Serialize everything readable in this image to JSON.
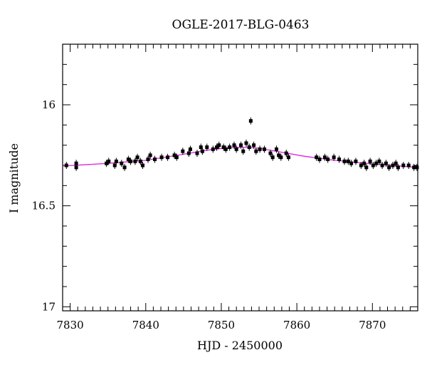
{
  "chart_data": {
    "type": "scatter",
    "title": "OGLE-2017-BLG-0463",
    "xlabel": "HJD - 2450000",
    "ylabel": "I magnitude",
    "xlim": [
      7829,
      7876
    ],
    "ylim": [
      17.02,
      15.7
    ],
    "y_inverted": true,
    "grid": false,
    "x_ticks": [
      7830,
      7840,
      7850,
      7860,
      7870
    ],
    "x_tick_labels": [
      "7830",
      "7840",
      "7850",
      "7860",
      "7870"
    ],
    "y_ticks": [
      16,
      16.5,
      17
    ],
    "y_tick_labels": [
      "16",
      "16.5",
      "17"
    ],
    "series": [
      {
        "kind": "points",
        "color": "#000000",
        "x": [
          7829.5,
          7830.8,
          7830.8,
          7834.8,
          7835.1,
          7835.9,
          7836.1,
          7836.8,
          7837.2,
          7837.7,
          7838.0,
          7838.6,
          7838.9,
          7839.3,
          7839.6,
          7840.3,
          7840.6,
          7841.2,
          7842.1,
          7842.9,
          7843.8,
          7844.1,
          7844.9,
          7845.7,
          7845.9,
          7846.8,
          7847.3,
          7847.5,
          7848.1,
          7848.9,
          7849.4,
          7849.7,
          7850.3,
          7850.6,
          7851.1,
          7851.7,
          7852.0,
          7852.6,
          7852.9,
          7853.3,
          7853.7,
          7853.9,
          7854.3,
          7854.6,
          7855.1,
          7855.7,
          7856.5,
          7856.8,
          7857.3,
          7857.6,
          7857.9,
          7858.6,
          7858.9,
          7862.6,
          7863.0,
          7863.7,
          7864.1,
          7864.9,
          7865.6,
          7866.3,
          7866.8,
          7867.2,
          7867.8,
          7868.5,
          7868.9,
          7869.2,
          7869.7,
          7870.1,
          7870.5,
          7870.9,
          7871.3,
          7871.8,
          7872.2,
          7872.7,
          7873.1,
          7873.4,
          7874.1,
          7874.8,
          7875.5,
          7875.9
        ],
        "y": [
          16.3,
          16.29,
          16.31,
          16.29,
          16.28,
          16.3,
          16.28,
          16.29,
          16.31,
          16.27,
          16.28,
          16.28,
          16.26,
          16.28,
          16.3,
          16.27,
          16.25,
          16.27,
          16.26,
          16.26,
          16.25,
          16.26,
          16.23,
          16.24,
          16.22,
          16.24,
          16.21,
          16.23,
          16.21,
          16.22,
          16.21,
          16.2,
          16.21,
          16.22,
          16.21,
          16.2,
          16.22,
          16.2,
          16.23,
          16.19,
          16.21,
          16.08,
          16.2,
          16.23,
          16.22,
          16.22,
          16.24,
          16.26,
          16.22,
          16.25,
          16.26,
          16.24,
          16.26,
          16.26,
          16.27,
          16.26,
          16.27,
          16.26,
          16.27,
          16.28,
          16.28,
          16.29,
          16.28,
          16.3,
          16.29,
          16.31,
          16.28,
          16.3,
          16.29,
          16.28,
          16.3,
          16.29,
          16.31,
          16.3,
          16.29,
          16.31,
          16.3,
          16.3,
          16.31,
          16.31
        ]
      },
      {
        "kind": "model-line",
        "color": "#e020e0",
        "x": [
          7829,
          7835,
          7840,
          7845,
          7848,
          7851,
          7853,
          7855,
          7858,
          7861,
          7865,
          7870,
          7876
        ],
        "y": [
          16.303,
          16.29,
          16.275,
          16.245,
          16.225,
          16.212,
          16.21,
          16.215,
          16.235,
          16.255,
          16.275,
          16.293,
          16.31
        ]
      }
    ]
  }
}
